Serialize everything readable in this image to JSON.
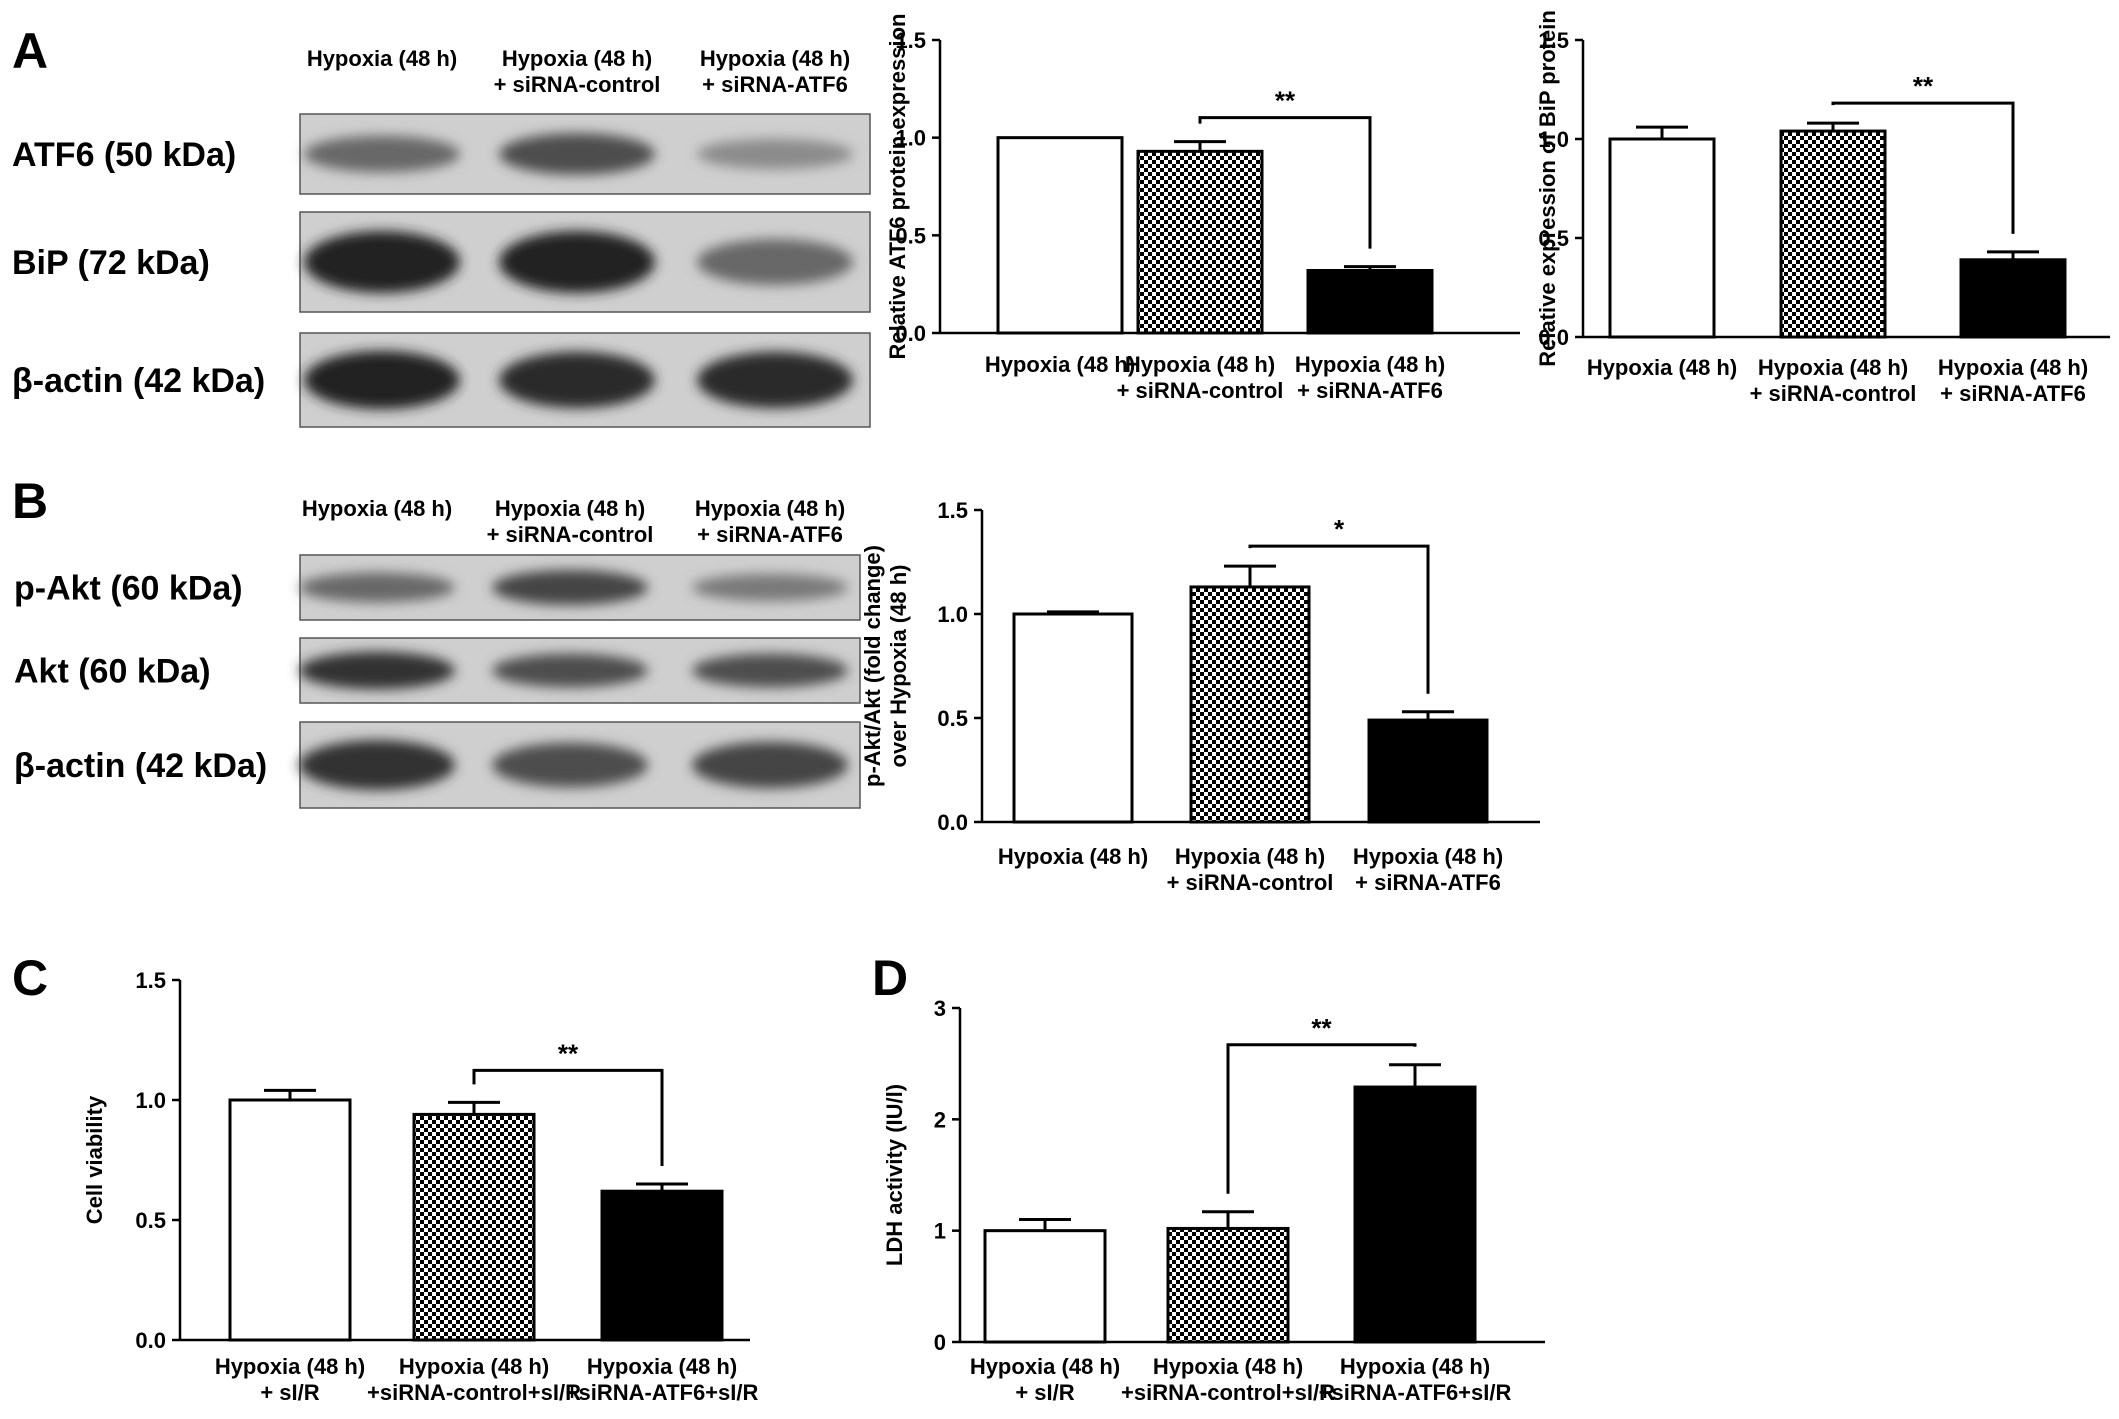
{
  "panels": {
    "A": {
      "letter": "A",
      "blot": {
        "lanes": [
          "Hypoxia (48 h)",
          "Hypoxia (48 h)\n+ siRNA-control",
          "Hypoxia (48 h)\n+ siRNA-ATF6"
        ],
        "rows": [
          {
            "label": "ATF6 (50 kDa)",
            "intensity": [
              0.55,
              0.7,
              0.35
            ]
          },
          {
            "label": "BiP (72 kDa)",
            "intensity": [
              0.95,
              0.95,
              0.55
            ]
          },
          {
            "label": "β-actin (42 kDa)",
            "intensity": [
              0.95,
              0.9,
              0.9
            ]
          }
        ]
      }
    },
    "B": {
      "letter": "B",
      "blot": {
        "lanes": [
          "Hypoxia (48 h)",
          "Hypoxia (48 h)\n+ siRNA-control",
          "Hypoxia (48 h)\n+ siRNA-ATF6"
        ],
        "rows": [
          {
            "label": "p-Akt (60 kDa)",
            "intensity": [
              0.55,
              0.75,
              0.45
            ]
          },
          {
            "label": "Akt (60 kDa)",
            "intensity": [
              0.85,
              0.7,
              0.7
            ]
          },
          {
            "label": "β-actin (42 kDa)",
            "intensity": [
              0.85,
              0.7,
              0.75
            ]
          }
        ]
      }
    },
    "C": {
      "letter": "C"
    },
    "D": {
      "letter": "D"
    }
  },
  "chart_data": [
    {
      "id": "A1",
      "type": "bar",
      "categories": [
        "Hypoxia (48 h)",
        "Hypoxia (48 h)\n+ siRNA-control",
        "Hypoxia (48 h)\n+ siRNA-ATF6"
      ],
      "values": [
        1.0,
        0.93,
        0.32
      ],
      "errors": [
        0.0,
        0.05,
        0.02
      ],
      "fills": [
        "white",
        "checker",
        "black"
      ],
      "ylabel": "Relative ATF6 protein expression",
      "ylim": [
        0,
        1.5
      ],
      "yticks": [
        "0.0",
        "0.5",
        "1.0",
        "1.5"
      ],
      "significance": [
        {
          "from": 1,
          "to": 2,
          "label": "**"
        }
      ]
    },
    {
      "id": "A2",
      "type": "bar",
      "categories": [
        "Hypoxia (48 h)",
        "Hypoxia (48 h)\n+ siRNA-control",
        "Hypoxia (48 h)\n+ siRNA-ATF6"
      ],
      "values": [
        1.0,
        1.04,
        0.39
      ],
      "errors": [
        0.06,
        0.04,
        0.04
      ],
      "fills": [
        "white",
        "checker",
        "black"
      ],
      "ylabel": "Relative expression of BiP protein",
      "ylim": [
        0,
        1.5
      ],
      "yticks": [
        "0.0",
        "0.5",
        "1.0",
        "1.5"
      ],
      "significance": [
        {
          "from": 1,
          "to": 2,
          "label": "**"
        }
      ]
    },
    {
      "id": "B1",
      "type": "bar",
      "categories": [
        "Hypoxia (48 h)",
        "Hypoxia (48 h)\n+ siRNA-control",
        "Hypoxia (48 h)\n+ siRNA-ATF6"
      ],
      "values": [
        1.0,
        1.13,
        0.49
      ],
      "errors": [
        0.01,
        0.1,
        0.04
      ],
      "fills": [
        "white",
        "checker",
        "black"
      ],
      "ylabel": "p-Akt/Akt (fold change)\nover Hypoxia (48 h)",
      "ylim": [
        0,
        1.5
      ],
      "yticks": [
        "0.0",
        "0.5",
        "1.0",
        "1.5"
      ],
      "significance": [
        {
          "from": 1,
          "to": 2,
          "label": "*"
        }
      ]
    },
    {
      "id": "C",
      "type": "bar",
      "categories": [
        "Hypoxia (48 h)\n+ sI/R",
        "Hypoxia (48 h)\n+siRNA-control+sI/R",
        "Hypoxia (48 h)\n+siRNA-ATF6+sI/R"
      ],
      "values": [
        1.0,
        0.94,
        0.62
      ],
      "errors": [
        0.04,
        0.05,
        0.03
      ],
      "fills": [
        "white",
        "checker",
        "black"
      ],
      "ylabel": "Cell viability",
      "ylim": [
        0,
        1.5
      ],
      "yticks": [
        "0.0",
        "0.5",
        "1.0",
        "1.5"
      ],
      "significance": [
        {
          "from": 1,
          "to": 2,
          "label": "**"
        }
      ]
    },
    {
      "id": "D",
      "type": "bar",
      "categories": [
        "Hypoxia (48 h)\n+ sI/R",
        "Hypoxia (48 h)\n+siRNA-control+sI/R",
        "Hypoxia (48 h)\n+siRNA-ATF6+sI/R"
      ],
      "values": [
        1.0,
        1.02,
        2.29
      ],
      "errors": [
        0.1,
        0.15,
        0.2
      ],
      "fills": [
        "white",
        "checker",
        "black"
      ],
      "ylabel": "LDH activity (IU/l)",
      "ylim": [
        0,
        3
      ],
      "yticks": [
        "0",
        "1",
        "2",
        "3"
      ],
      "significance": [
        {
          "from": 1,
          "to": 2,
          "label": "**"
        }
      ]
    }
  ]
}
